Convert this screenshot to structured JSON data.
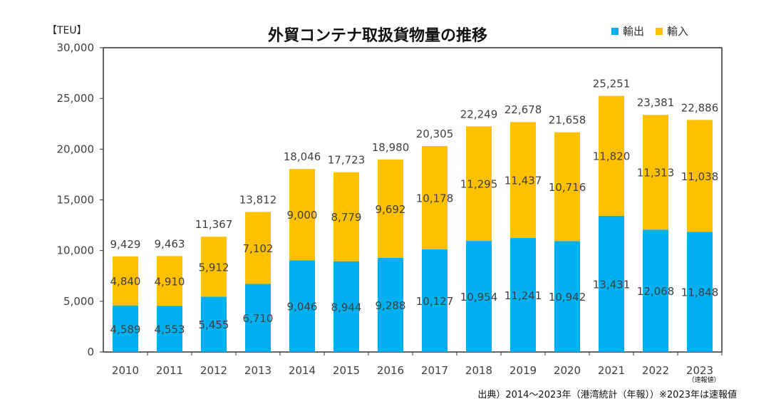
{
  "title": "外貿コンテナ取扱貨物量の推移",
  "unit_label": "【TEU】",
  "source_note": "出典）2014～2023年（港湾統計（年報））※2023年は速報値",
  "preliminary_note": "（速報値）",
  "colors": {
    "export": "#00B0F0",
    "import": "#FFC000",
    "axis": "#333333",
    "label": "#404040"
  },
  "chart_data": {
    "type": "bar",
    "stacked": true,
    "categories": [
      "2010",
      "2011",
      "2012",
      "2013",
      "2014",
      "2015",
      "2016",
      "2017",
      "2018",
      "2019",
      "2020",
      "2021",
      "2022",
      "2023"
    ],
    "series": [
      {
        "name": "輸出",
        "values": [
          4589,
          4553,
          5455,
          6710,
          9046,
          8944,
          9288,
          10127,
          10954,
          11241,
          10942,
          13431,
          12068,
          11848
        ]
      },
      {
        "name": "輸入",
        "values": [
          4840,
          4910,
          5912,
          7102,
          9000,
          8779,
          9692,
          10178,
          11295,
          11437,
          10716,
          11820,
          11313,
          11038
        ]
      }
    ],
    "totals": [
      9429,
      9463,
      11367,
      13812,
      18046,
      17723,
      18980,
      20305,
      22249,
      22678,
      21658,
      25251,
      23381,
      22886
    ],
    "ylim": [
      0,
      30000
    ],
    "yticks": [
      0,
      5000,
      10000,
      15000,
      20000,
      25000,
      30000
    ],
    "ytick_labels": [
      "0",
      "5,000",
      "10,000",
      "15,000",
      "20,000",
      "25,000",
      "30,000"
    ],
    "legend_position": "top-right",
    "grid": false
  }
}
